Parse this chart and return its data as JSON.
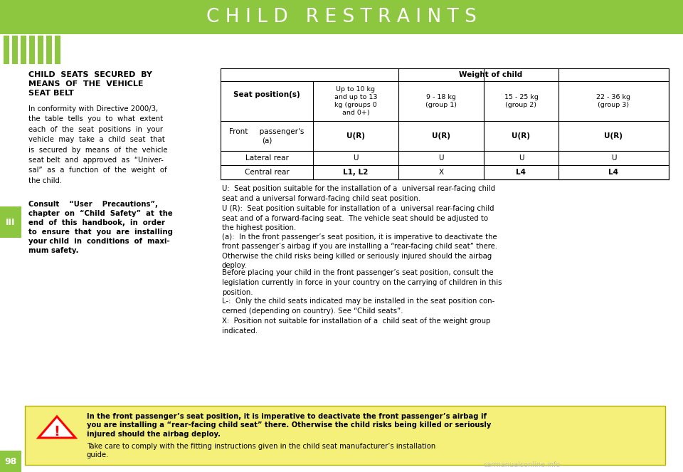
{
  "title": "C H I L D   R E S T R A I N T S",
  "background_color": "#ffffff",
  "header_bar_color": "#8dc63f",
  "page_number": "98",
  "chapter_label": "III",
  "section_title_line1": "CHILD  SEATS  SECURED  BY",
  "section_title_line2": "MEANS  OF  THE  VEHICLE",
  "section_title_line3": "SEAT BELT",
  "left_text_para1": "In conformity with Directive 2000/3,\nthe  table  tells  you  to  what  extent\neach  of  the  seat  positions  in  your\nvehicle  may  take  a  child  seat  that\nis  secured  by  means  of  the  vehicle\nseat belt  and  approved  as  “Univer-\nsal”  as  a  function  of  the  weight  of\nthe child.",
  "left_text_para2_line1": "Consult    “User    Precautions”,",
  "left_text_para2_line2": "chapter  on  “Child  Safety”  at  the",
  "left_text_para2_line3": "end  of  this  handbook,  in  order",
  "left_text_para2_line4": "to  ensure  that  you  are  installing",
  "left_text_para2_line5": "your child  in  conditions  of  maxi-",
  "left_text_para2_line6": "mum safety.",
  "table_header_main": "Weight of child",
  "table_col0": "Seat position(s)",
  "table_col1": "Up to 10 kg\nand up to 13\nkg (groups 0\nand 0+)",
  "table_col2": "9 - 18 kg\n(group 1)",
  "table_col3": "15 - 25 kg\n(group 2)",
  "table_col4": "22 - 36 kg\n(group 3)",
  "row0_col0": "Front     passenger's\n(a)",
  "row0_col1": "U(R)",
  "row0_col2": "U(R)",
  "row0_col3": "U(R)",
  "row0_col4": "U(R)",
  "row1_col0": "Lateral rear",
  "row1_col1": "U",
  "row1_col2": "U",
  "row1_col3": "U",
  "row1_col4": "U",
  "row2_col0": "Central rear",
  "row2_col1": "L1, L2",
  "row2_col2": "X",
  "row2_col3": "L4",
  "row2_col4": "L4",
  "right_para1": "U:  Seat position suitable for the installation of a  universal rear-facing child\nseat and a universal forward-facing child seat position.",
  "right_para2": "U (R):  Seat position suitable for installation of a  universal rear-facing child\nseat and of a forward-facing seat.  The vehicle seat should be adjusted to\nthe highest position.",
  "right_para3": "(a):  In the front passenger’s seat position, it is imperative to deactivate the\nfront passenger’s airbag if you are installing a “rear-facing child seat” there.\nOtherwise the child risks being killed or seriously injured should the airbag\ndeploy.",
  "right_para4": "Before placing your child in the front passenger’s seat position, consult the\nlegislation currently in force in your country on the carrying of children in this\nposition.",
  "right_para5": "L-:  Only the child seats indicated may be installed in the seat position con-\ncerned (depending on country). See “Child seats”.",
  "right_para6": "X:  Position not suitable for installation of a  child seat of the weight group\nindicated.",
  "warning_text1": "In the front passenger’s seat position, it is imperative to deactivate the front passenger’s airbag if",
  "warning_text2": "you are installing a “rear-facing child seat” there. Otherwise the child risks being killed or seriously",
  "warning_text3": "injured should the airbag deploy.",
  "warning_text4": "Take care to comply with the fitting instructions given in the child seat manufacturer’s installation",
  "warning_text5": "guide.",
  "watermark": "carmanualsonline.info",
  "green": "#8dc63f"
}
